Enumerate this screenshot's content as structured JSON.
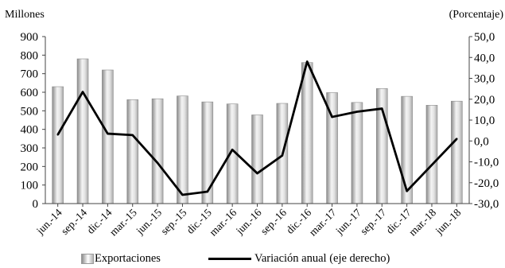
{
  "chart_data": {
    "type": "bar",
    "units": {
      "left": "Millones",
      "right": "(Porcentaje)"
    },
    "categories": [
      "jun.-14",
      "sep.-14",
      "dic.-14",
      "mar.-15",
      "jun.-15",
      "sep.-15",
      "dic.-15",
      "mar.-16",
      "jun.-16",
      "sep.-16",
      "dic.-16",
      "mar.-17",
      "jun.-17",
      "sep.-17",
      "dic.-17",
      "mar.-18",
      "jun.-18"
    ],
    "series": [
      {
        "name": "Exportaciones",
        "type": "bar",
        "axis": "left",
        "color": "#bdbdbd",
        "values": [
          630,
          780,
          720,
          560,
          565,
          580,
          548,
          537,
          478,
          540,
          760,
          598,
          545,
          620,
          578,
          530,
          552
        ]
      },
      {
        "name": "Variación anual (eje derecho)",
        "type": "line",
        "axis": "right",
        "color": "#000000",
        "values": [
          3.0,
          23.5,
          3.5,
          2.8,
          -10.5,
          -25.8,
          -24.3,
          -4.2,
          -15.5,
          -7.0,
          38.0,
          11.5,
          14.0,
          15.5,
          -24.0,
          -11.5,
          1.0
        ]
      }
    ],
    "y_left": {
      "min": 0,
      "max": 900,
      "step": 100,
      "ticks": [
        "0",
        "100",
        "200",
        "300",
        "400",
        "500",
        "600",
        "700",
        "800",
        "900"
      ]
    },
    "y_right": {
      "min": -30,
      "max": 50,
      "step": 10,
      "ticks": [
        "-30,0",
        "-20,0",
        "-10,0",
        "0,0",
        "10,0",
        "20,0",
        "30,0",
        "40,0",
        "50,0"
      ]
    },
    "grid": false,
    "legend_position": "bottom"
  }
}
